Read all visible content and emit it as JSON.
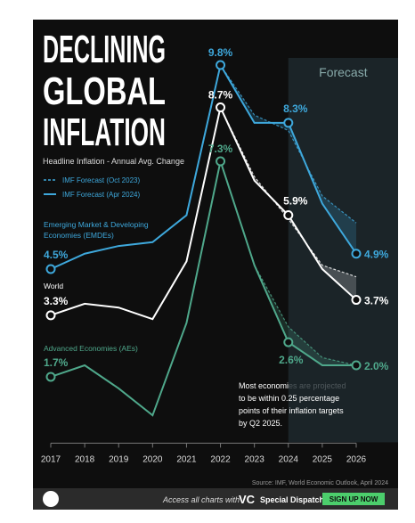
{
  "chart_data": {
    "type": "line",
    "title_lines": [
      "DECLINING",
      "GLOBAL",
      "INFLATION"
    ],
    "subtitle": "Headline Inflation - Annual Avg. Change",
    "legend": {
      "oct_2023": "IMF Forecast (Oct 2023)",
      "apr_2024": "IMF Forecast (Apr 2024)"
    },
    "forecast_label": "Forecast",
    "forecast_from": 2024,
    "x": [
      2017,
      2018,
      2019,
      2020,
      2021,
      2022,
      2023,
      2024,
      2025,
      2026
    ],
    "xlim": [
      2017,
      2026
    ],
    "ylim": [
      0,
      10
    ],
    "series": [
      {
        "name_lines": [
          "Emerging Market & Developing",
          "Economies (EMDEs)"
        ],
        "color": "#3ea8dc",
        "values": [
          4.5,
          4.9,
          5.1,
          5.2,
          5.9,
          9.8,
          8.3,
          8.3,
          6.2,
          4.9
        ],
        "value_labels": [
          "4.5%",
          null,
          null,
          null,
          null,
          "9.8%",
          null,
          "8.3%",
          null,
          "4.9%"
        ],
        "oct_2023_values": [
          null,
          null,
          null,
          null,
          null,
          9.8,
          8.5,
          8.1,
          6.4,
          5.7
        ]
      },
      {
        "name_lines": [
          "World"
        ],
        "color": "#ffffff",
        "values": [
          3.3,
          3.6,
          3.5,
          3.2,
          4.7,
          8.7,
          6.8,
          5.9,
          4.5,
          3.7
        ],
        "value_labels": [
          "3.3%",
          null,
          null,
          null,
          null,
          "8.7%",
          null,
          "5.9%",
          null,
          "3.7%"
        ],
        "oct_2023_values": [
          null,
          null,
          null,
          null,
          null,
          8.7,
          6.9,
          5.8,
          4.6,
          4.3
        ]
      },
      {
        "name_lines": [
          "Advanced Economies (AEs)"
        ],
        "color": "#4fa88b",
        "values": [
          1.7,
          2.0,
          1.4,
          0.7,
          3.1,
          7.3,
          4.6,
          2.6,
          2.0,
          2.0
        ],
        "value_labels": [
          "1.7%",
          null,
          null,
          null,
          null,
          "7.3%",
          null,
          "2.6%",
          null,
          "2.0%"
        ],
        "oct_2023_values": [
          null,
          null,
          null,
          null,
          null,
          7.3,
          4.6,
          3.0,
          2.2,
          2.0
        ]
      }
    ],
    "annotation_lines": [
      "Most economies are projected",
      "to be within 0.25 percentage",
      "points of their inflation targets",
      "by Q2 2025."
    ],
    "source": "Source: IMF, World Economic Outlook, April 2024"
  },
  "footer": {
    "access": "Access all charts with",
    "brand": "VC",
    "dispatch": "Special Dispatch",
    "button": "SIGN UP NOW"
  }
}
